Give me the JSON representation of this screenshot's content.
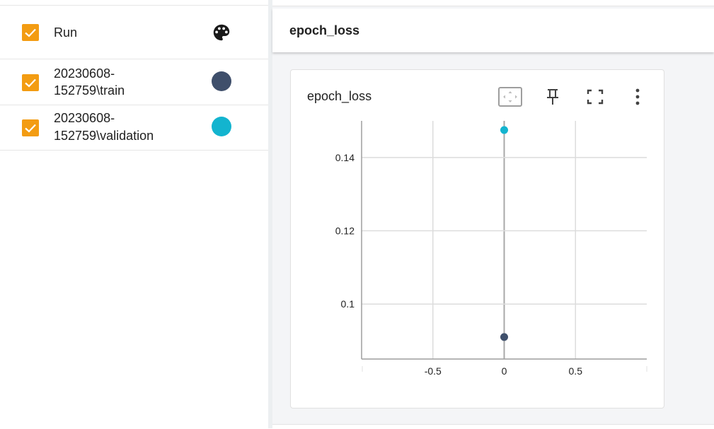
{
  "runs_panel": {
    "header": {
      "label": "Run",
      "icon": "palette-icon",
      "checked": true
    },
    "runs": [
      {
        "line1": "20230608-",
        "line2": "152759\\train",
        "color": "#3f4f6b",
        "checked": true
      },
      {
        "line1": "20230608-",
        "line2": "152759\\validation",
        "color": "#13b4cf",
        "checked": true
      }
    ],
    "checkbox_color": "#f39c12"
  },
  "group": {
    "title": "epoch_loss"
  },
  "card": {
    "title": "epoch_loss",
    "tools": [
      "fit-domain-icon",
      "pin-icon",
      "fullscreen-icon",
      "more-vert-icon"
    ]
  },
  "chart_data": {
    "type": "scatter",
    "title": "epoch_loss",
    "xlabel": "",
    "ylabel": "",
    "x_ticks": [
      "-0.5",
      "0",
      "0.5"
    ],
    "y_ticks": [
      "0.1",
      "0.12",
      "0.14"
    ],
    "xlim": [
      -1,
      1
    ],
    "ylim": [
      0.085,
      0.15
    ],
    "grid": true,
    "series": [
      {
        "x": [
          0
        ],
        "y": [
          0.1475
        ],
        "color": "#13b4cf"
      },
      {
        "x": [
          0
        ],
        "y": [
          0.091
        ],
        "color": "#3f4f6b"
      }
    ]
  }
}
